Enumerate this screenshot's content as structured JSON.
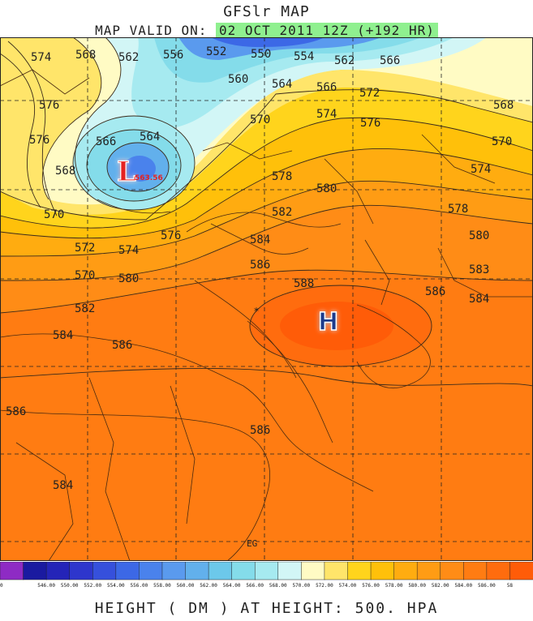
{
  "header": {
    "title": "GFSlr MAP",
    "valid_prefix": "MAP VALID ON:",
    "valid_time": "02 OCT 2011 12Z (+192 HR)"
  },
  "footer": "HEIGHT (  DM  ) AT HEIGHT: 500. HPA",
  "pressure_centers": {
    "low_symbol": "L",
    "low_value": "563.56",
    "high_symbol": "H"
  },
  "map_marker": "EG",
  "contour_labels": [
    "574",
    "568",
    "562",
    "556",
    "552",
    "550",
    "554",
    "562",
    "566",
    "576",
    "560",
    "564",
    "566",
    "572",
    "568",
    "576",
    "566",
    "564",
    "570",
    "574",
    "576",
    "570",
    "568",
    "570",
    "578",
    "580",
    "574",
    "578",
    "582",
    "580",
    "572",
    "574",
    "576",
    "584",
    "570",
    "580",
    "586",
    "583",
    "582",
    "588",
    "586",
    "584",
    "584",
    "586",
    "586",
    "586",
    "584"
  ],
  "legend": {
    "colors": [
      "#8e2bc4",
      "#1a1aa0",
      "#2424b8",
      "#2e36cc",
      "#3650dc",
      "#3c68e6",
      "#4a82ec",
      "#5a9aee",
      "#62b0ec",
      "#6cc8ea",
      "#84dcea",
      "#a6eaf0",
      "#d2f6f6",
      "#fffbc4",
      "#ffe56a",
      "#ffd41c",
      "#ffc00a",
      "#ffac10",
      "#ff9c14",
      "#ff8c16",
      "#ff7c12",
      "#ff6c0e",
      "#ff5c08"
    ],
    "labels": [
      "0",
      "546.00",
      "550.00",
      "552.00",
      "554.00",
      "556.00",
      "558.00",
      "560.00",
      "562.00",
      "564.00",
      "566.00",
      "568.00",
      "570.00",
      "572.00",
      "574.00",
      "576.00",
      "578.00",
      "580.00",
      "582.00",
      "584.00",
      "586.00",
      "58"
    ]
  }
}
